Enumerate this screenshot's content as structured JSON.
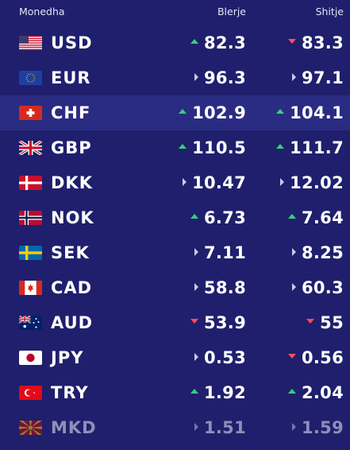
{
  "header": {
    "currency": "Monedha",
    "buy": "Blerje",
    "sell": "Shitje"
  },
  "colors": {
    "background": "#1f1f6e",
    "highlight_row": "#2a2c83",
    "up": "#33d17a",
    "down": "#ff4c5b",
    "flat": "#c9cbe3"
  },
  "rows": [
    {
      "code": "USD",
      "flag": "us-flag-icon",
      "buy": "82.3",
      "buy_trend": "up",
      "sell": "83.3",
      "sell_trend": "down"
    },
    {
      "code": "EUR",
      "flag": "eu-flag-icon",
      "buy": "96.3",
      "buy_trend": "flat",
      "sell": "97.1",
      "sell_trend": "flat"
    },
    {
      "code": "CHF",
      "flag": "ch-flag-icon",
      "buy": "102.9",
      "buy_trend": "up",
      "sell": "104.1",
      "sell_trend": "up"
    },
    {
      "code": "GBP",
      "flag": "gb-flag-icon",
      "buy": "110.5",
      "buy_trend": "up",
      "sell": "111.7",
      "sell_trend": "up"
    },
    {
      "code": "DKK",
      "flag": "dk-flag-icon",
      "buy": "10.47",
      "buy_trend": "flat",
      "sell": "12.02",
      "sell_trend": "flat"
    },
    {
      "code": "NOK",
      "flag": "no-flag-icon",
      "buy": "6.73",
      "buy_trend": "up",
      "sell": "7.64",
      "sell_trend": "up"
    },
    {
      "code": "SEK",
      "flag": "se-flag-icon",
      "buy": "7.11",
      "buy_trend": "flat",
      "sell": "8.25",
      "sell_trend": "flat"
    },
    {
      "code": "CAD",
      "flag": "ca-flag-icon",
      "buy": "58.8",
      "buy_trend": "flat",
      "sell": "60.3",
      "sell_trend": "flat"
    },
    {
      "code": "AUD",
      "flag": "au-flag-icon",
      "buy": "53.9",
      "buy_trend": "down",
      "sell": "55",
      "sell_trend": "down"
    },
    {
      "code": "JPY",
      "flag": "jp-flag-icon",
      "buy": "0.53",
      "buy_trend": "flat",
      "sell": "0.56",
      "sell_trend": "down"
    },
    {
      "code": "TRY",
      "flag": "tr-flag-icon",
      "buy": "1.92",
      "buy_trend": "up",
      "sell": "2.04",
      "sell_trend": "up"
    },
    {
      "code": "MKD",
      "flag": "mk-flag-icon",
      "buy": "1.51",
      "buy_trend": "flat",
      "sell": "1.59",
      "sell_trend": "flat"
    }
  ]
}
